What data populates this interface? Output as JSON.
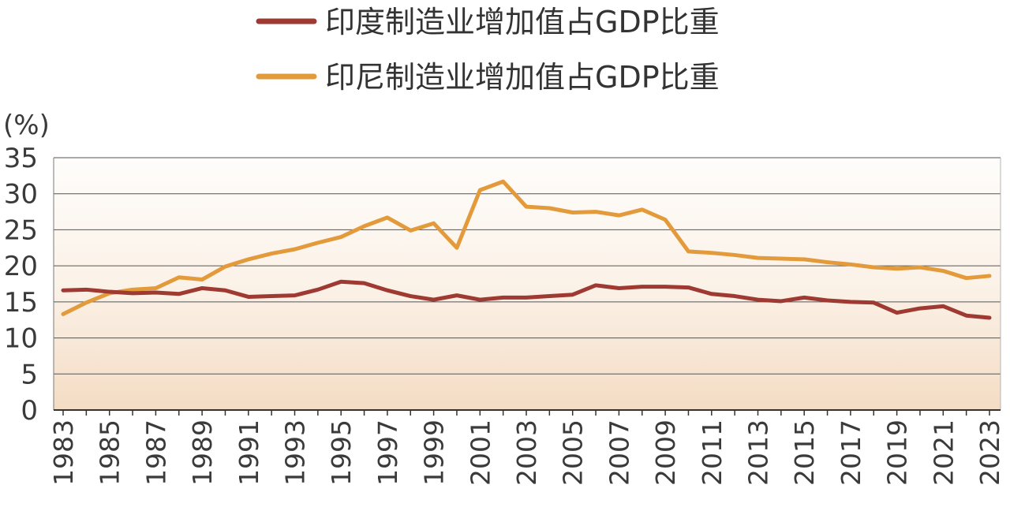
{
  "chart_data": {
    "type": "line",
    "title": "",
    "xlabel": "",
    "ylabel": "(%)",
    "ylim": [
      0,
      35
    ],
    "yticks": [
      0,
      5,
      10,
      15,
      20,
      25,
      30,
      35
    ],
    "xlim": [
      1983,
      2023
    ],
    "xticks": [
      1983,
      1985,
      1987,
      1989,
      1991,
      1993,
      1995,
      1997,
      1999,
      2001,
      2003,
      2005,
      2007,
      2009,
      2011,
      2013,
      2015,
      2017,
      2019,
      2021,
      2023
    ],
    "grid": true,
    "legend_position": "top-center",
    "x": [
      1983,
      1984,
      1985,
      1986,
      1987,
      1988,
      1989,
      1990,
      1991,
      1992,
      1993,
      1994,
      1995,
      1996,
      1997,
      1998,
      1999,
      2000,
      2001,
      2002,
      2003,
      2004,
      2005,
      2006,
      2007,
      2008,
      2009,
      2010,
      2011,
      2012,
      2013,
      2014,
      2015,
      2016,
      2017,
      2018,
      2019,
      2020,
      2021,
      2022,
      2023
    ],
    "series": [
      {
        "name": "印度制造业增加值占GDP比重",
        "color": "#9e3a32",
        "values": [
          16.6,
          16.7,
          16.4,
          16.2,
          16.3,
          16.1,
          16.9,
          16.6,
          15.7,
          15.8,
          15.9,
          16.7,
          17.8,
          17.6,
          16.6,
          15.8,
          15.3,
          15.9,
          15.3,
          15.6,
          15.6,
          15.8,
          16.0,
          17.3,
          16.9,
          17.1,
          17.1,
          17.0,
          16.1,
          15.8,
          15.3,
          15.1,
          15.6,
          15.2,
          15.0,
          14.9,
          13.5,
          14.1,
          14.4,
          13.1,
          12.8
        ]
      },
      {
        "name": "印尼制造业增加值占GDP比重",
        "color": "#e39a3b",
        "values": [
          13.3,
          14.9,
          16.2,
          16.7,
          16.9,
          18.4,
          18.1,
          19.9,
          20.9,
          21.7,
          22.3,
          23.2,
          24.0,
          25.5,
          26.7,
          24.9,
          25.9,
          22.5,
          30.5,
          31.7,
          28.2,
          28.0,
          27.4,
          27.5,
          27.0,
          27.8,
          26.4,
          22.0,
          21.8,
          21.5,
          21.1,
          21.0,
          20.9,
          20.5,
          20.2,
          19.8,
          19.6,
          19.8,
          19.3,
          18.3,
          18.6
        ]
      }
    ]
  }
}
